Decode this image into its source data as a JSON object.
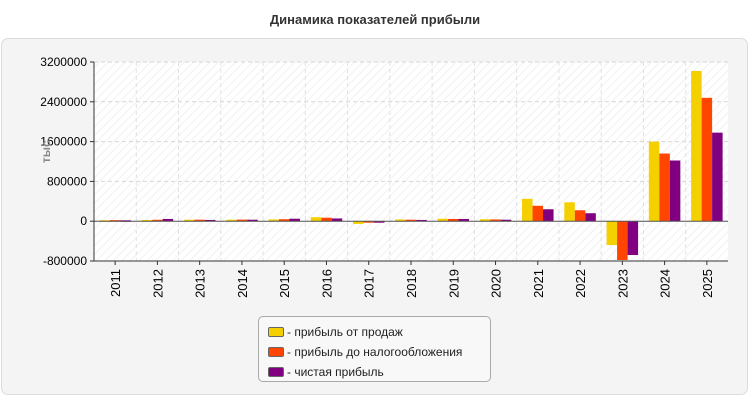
{
  "title": "Динамика показателей прибыли",
  "chart_data": {
    "type": "bar",
    "title": "Динамика показателей прибыли",
    "ylabel": "тыс.",
    "xlabel": "",
    "ylim": [
      -800000,
      3200000
    ],
    "yticks": [
      -800000,
      0,
      800000,
      1600000,
      2400000,
      3200000
    ],
    "categories": [
      "2011",
      "2012",
      "2013",
      "2014",
      "2015",
      "2016",
      "2017",
      "2018",
      "2019",
      "2020",
      "2021",
      "2022",
      "2023",
      "2024",
      "2025"
    ],
    "series": [
      {
        "name": "- прибыль от продаж",
        "color": "#f5d000",
        "values": [
          20000,
          25000,
          30000,
          30000,
          35000,
          80000,
          -55000,
          35000,
          50000,
          40000,
          450000,
          380000,
          -480000,
          1600000,
          3020000
        ]
      },
      {
        "name": "- прибыль до налогообложения",
        "color": "#ff4500",
        "values": [
          22000,
          28000,
          30000,
          32000,
          40000,
          70000,
          -30000,
          30000,
          45000,
          35000,
          310000,
          220000,
          -780000,
          1360000,
          2480000
        ]
      },
      {
        "name": "- чистая прибыль",
        "color": "#800080",
        "values": [
          18000,
          45000,
          25000,
          30000,
          50000,
          55000,
          -15000,
          25000,
          45000,
          30000,
          240000,
          160000,
          -680000,
          1220000,
          1780000
        ]
      }
    ],
    "grid": true,
    "legend_position": "bottom"
  }
}
